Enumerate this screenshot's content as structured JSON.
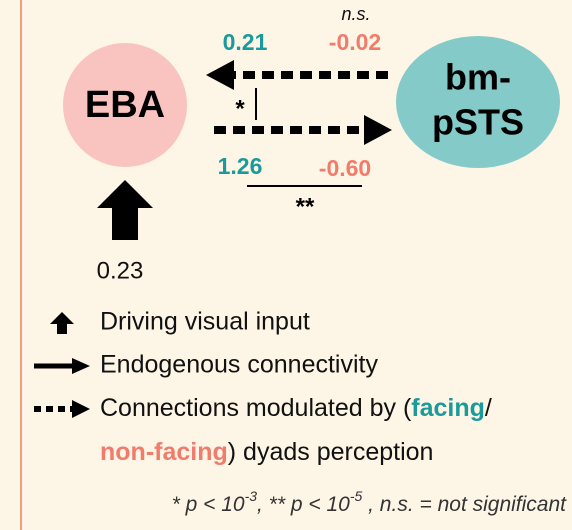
{
  "significance_top": "n.s.",
  "nodes": [
    {
      "label": "EBA"
    },
    {
      "label_lines": [
        "bm-",
        "pSTS"
      ]
    }
  ],
  "edges": {
    "top": {
      "facing": "0.21",
      "non_facing": "-0.02"
    },
    "bottom": {
      "facing": "1.26",
      "non_facing": "-0.60"
    },
    "left_significance": "*",
    "bottom_significance": "**",
    "input": "0.23"
  },
  "legend": {
    "driving": "Driving visual input",
    "endogenous": "Endogenous connectivity",
    "modulated_line1": [
      "Connections modulated by (",
      "facing",
      "/"
    ],
    "modulated_line2": [
      "non-facing",
      ") dyads perception"
    ]
  },
  "footnote": [
    "* p < 10",
    "-3",
    ", ** p < 10",
    "-5",
    " , n.s. = not significant"
  ]
}
